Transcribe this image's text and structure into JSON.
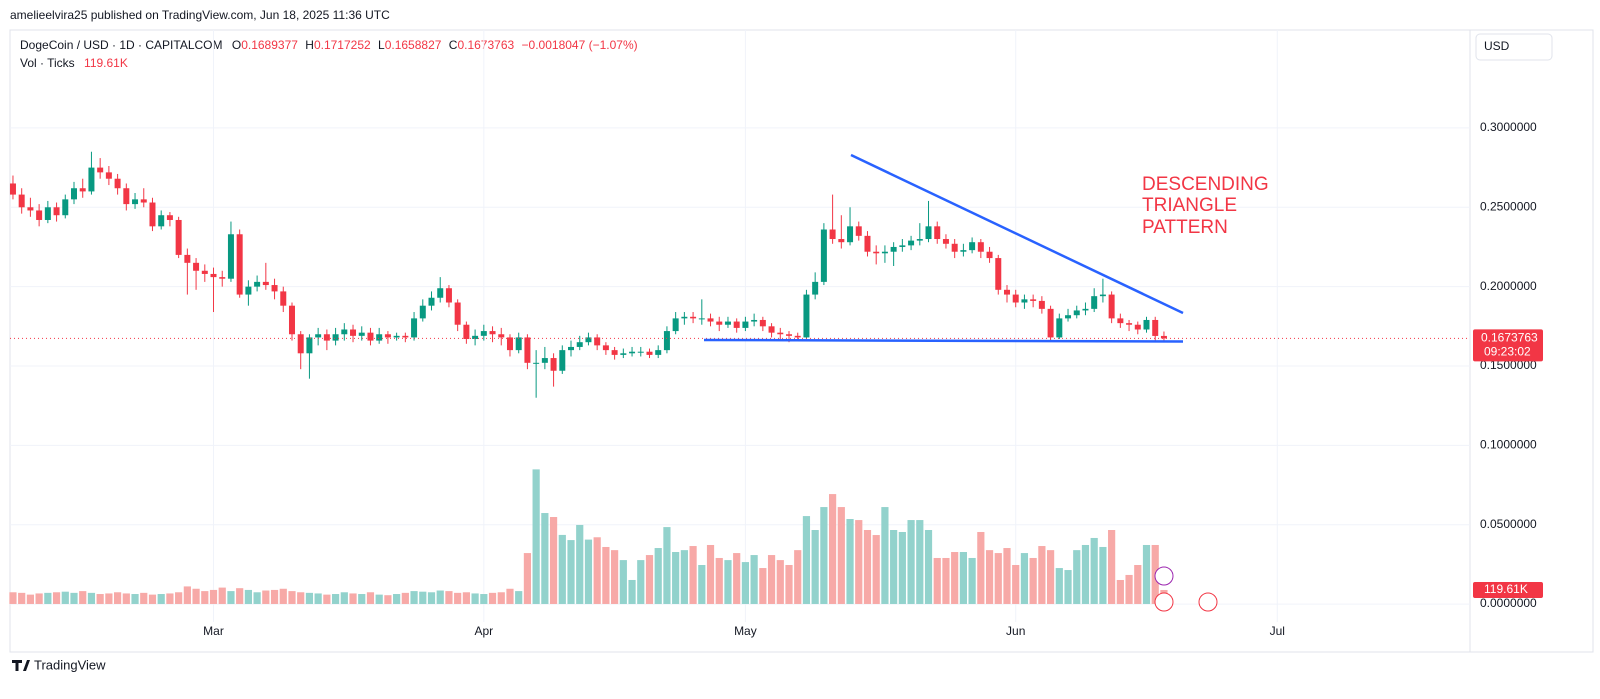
{
  "header": "amelieelvira25 published on TradingView.com, Jun 18, 2025 11:36 UTC",
  "brand": "TradingView",
  "currency": "USD",
  "annotation": [
    "DESCENDING",
    "TRIANGLE",
    "PATTERN"
  ],
  "chart_data": {
    "type": "candlestick",
    "title": "DogeCoin / USD · 1D · CAPITALCOM",
    "ohlc_letters": [
      "O",
      "H",
      "L",
      "C"
    ],
    "change_label": "−0.0018047 (−1.07%)",
    "volume_title": "Vol · Ticks",
    "last_volume_label": "119.61K",
    "countdown": "09:23:02",
    "up_color": "#089981",
    "down_color": "#f23645",
    "volume_up_color": "#92d2cc",
    "volume_down_color": "#f7a9a7",
    "xlim": [
      -0.34,
      167.1
    ],
    "xticks": [
      {
        "value": 23,
        "label": "Mar"
      },
      {
        "value": 54,
        "label": "Apr"
      },
      {
        "value": 84,
        "label": "May"
      },
      {
        "value": 115,
        "label": "Jun"
      },
      {
        "value": 145,
        "label": "Jul"
      }
    ],
    "ylim": [
      -0.0113,
      0.3617
    ],
    "yticks": [
      {
        "value": 0,
        "label": "0.0000000"
      },
      {
        "value": 0.05,
        "label": "0.0500000"
      },
      {
        "value": 0.1,
        "label": "0.1000000"
      },
      {
        "value": 0.15,
        "label": "0.1500000"
      },
      {
        "value": 0.2,
        "label": "0.2000000"
      },
      {
        "value": 0.25,
        "label": "0.2500000"
      },
      {
        "value": 0.3,
        "label": "0.3000000"
      }
    ],
    "volume_ylim": [
      -154,
      4904
    ],
    "grid": true,
    "open": [
      0.265,
      0.258,
      0.25,
      0.248,
      0.242,
      0.25,
      0.245,
      0.255,
      0.262,
      0.26,
      0.275,
      0.272,
      0.268,
      0.262,
      0.252,
      0.255,
      0.253,
      0.238,
      0.245,
      0.242,
      0.22,
      0.215,
      0.21,
      0.208,
      0.206,
      0.205,
      0.233,
      0.195,
      0.2,
      0.203,
      0.201,
      0.197,
      0.188,
      0.17,
      0.158,
      0.168,
      0.17,
      0.166,
      0.17,
      0.173,
      0.169,
      0.171,
      0.166,
      0.17,
      0.168,
      0.169,
      0.168,
      0.18,
      0.188,
      0.193,
      0.199,
      0.19,
      0.176,
      0.167,
      0.169,
      0.172,
      0.17,
      0.168,
      0.16,
      0.168,
      0.152,
      0.152,
      0.155,
      0.147,
      0.16,
      0.162,
      0.165,
      0.168,
      0.163,
      0.16,
      0.157,
      0.158,
      0.159,
      0.159,
      0.157,
      0.16,
      0.172,
      0.18,
      0.181,
      0.18,
      0.18,
      0.178,
      0.176,
      0.178,
      0.174,
      0.178,
      0.179,
      0.175,
      0.171,
      0.17,
      0.169,
      0.168,
      0.195,
      0.203,
      0.236,
      0.23,
      0.228,
      0.238,
      0.232,
      0.222,
      0.221,
      0.222,
      0.225,
      0.226,
      0.229,
      0.23,
      0.238,
      0.23,
      0.227,
      0.222,
      0.223,
      0.228,
      0.222,
      0.218,
      0.198,
      0.195,
      0.19,
      0.192,
      0.191,
      0.186,
      0.168,
      0.18,
      0.182,
      0.185,
      0.186,
      0.194,
      0.195,
      0.18,
      0.177,
      0.176,
      0.173,
      0.179,
      0.1689377
    ],
    "high": [
      0.27,
      0.262,
      0.256,
      0.252,
      0.254,
      0.253,
      0.258,
      0.266,
      0.268,
      0.285,
      0.281,
      0.276,
      0.271,
      0.265,
      0.259,
      0.262,
      0.256,
      0.248,
      0.247,
      0.244,
      0.224,
      0.218,
      0.214,
      0.212,
      0.21,
      0.241,
      0.236,
      0.204,
      0.207,
      0.215,
      0.205,
      0.2,
      0.19,
      0.172,
      0.17,
      0.174,
      0.173,
      0.174,
      0.177,
      0.176,
      0.175,
      0.174,
      0.174,
      0.172,
      0.171,
      0.171,
      0.184,
      0.192,
      0.197,
      0.206,
      0.201,
      0.192,
      0.178,
      0.173,
      0.176,
      0.175,
      0.174,
      0.17,
      0.171,
      0.17,
      0.16,
      0.162,
      0.158,
      0.163,
      0.166,
      0.169,
      0.171,
      0.17,
      0.165,
      0.162,
      0.161,
      0.162,
      0.162,
      0.161,
      0.163,
      0.175,
      0.184,
      0.184,
      0.184,
      0.192,
      0.183,
      0.181,
      0.181,
      0.18,
      0.181,
      0.183,
      0.181,
      0.177,
      0.174,
      0.172,
      0.171,
      0.198,
      0.209,
      0.24,
      0.258,
      0.245,
      0.25,
      0.241,
      0.235,
      0.226,
      0.226,
      0.228,
      0.23,
      0.232,
      0.24,
      0.254,
      0.241,
      0.233,
      0.23,
      0.227,
      0.231,
      0.23,
      0.225,
      0.22,
      0.201,
      0.198,
      0.195,
      0.195,
      0.194,
      0.188,
      0.183,
      0.186,
      0.188,
      0.19,
      0.199,
      0.205,
      0.197,
      0.183,
      0.179,
      0.178,
      0.181,
      0.181,
      0.1717252
    ],
    "low": [
      0.255,
      0.246,
      0.244,
      0.238,
      0.24,
      0.241,
      0.243,
      0.252,
      0.256,
      0.258,
      0.268,
      0.264,
      0.258,
      0.248,
      0.249,
      0.25,
      0.235,
      0.236,
      0.238,
      0.218,
      0.195,
      0.198,
      0.203,
      0.184,
      0.2,
      0.203,
      0.193,
      0.188,
      0.197,
      0.198,
      0.192,
      0.184,
      0.166,
      0.148,
      0.142,
      0.163,
      0.16,
      0.163,
      0.166,
      0.165,
      0.166,
      0.163,
      0.164,
      0.164,
      0.166,
      0.165,
      0.166,
      0.178,
      0.185,
      0.19,
      0.187,
      0.172,
      0.164,
      0.163,
      0.166,
      0.165,
      0.163,
      0.156,
      0.158,
      0.148,
      0.13,
      0.148,
      0.137,
      0.145,
      0.156,
      0.16,
      0.163,
      0.16,
      0.157,
      0.154,
      0.155,
      0.156,
      0.156,
      0.155,
      0.155,
      0.158,
      0.17,
      0.176,
      0.177,
      0.176,
      0.175,
      0.172,
      0.174,
      0.171,
      0.172,
      0.175,
      0.172,
      0.168,
      0.167,
      0.165,
      0.166,
      0.167,
      0.192,
      0.201,
      0.227,
      0.224,
      0.226,
      0.229,
      0.219,
      0.214,
      0.215,
      0.213,
      0.222,
      0.223,
      0.226,
      0.228,
      0.227,
      0.224,
      0.218,
      0.219,
      0.221,
      0.218,
      0.215,
      0.195,
      0.19,
      0.187,
      0.186,
      0.187,
      0.183,
      0.166,
      0.167,
      0.178,
      0.18,
      0.182,
      0.184,
      0.19,
      0.177,
      0.174,
      0.172,
      0.17,
      0.171,
      0.166,
      0.1658827
    ],
    "close": [
      0.258,
      0.25,
      0.248,
      0.242,
      0.25,
      0.245,
      0.255,
      0.262,
      0.26,
      0.275,
      0.272,
      0.268,
      0.262,
      0.252,
      0.255,
      0.253,
      0.238,
      0.245,
      0.242,
      0.22,
      0.215,
      0.21,
      0.208,
      0.206,
      0.205,
      0.233,
      0.195,
      0.2,
      0.203,
      0.201,
      0.197,
      0.188,
      0.17,
      0.158,
      0.168,
      0.17,
      0.166,
      0.17,
      0.173,
      0.169,
      0.171,
      0.166,
      0.17,
      0.168,
      0.169,
      0.168,
      0.18,
      0.188,
      0.193,
      0.199,
      0.19,
      0.176,
      0.167,
      0.169,
      0.172,
      0.17,
      0.168,
      0.16,
      0.168,
      0.152,
      0.152,
      0.155,
      0.147,
      0.16,
      0.162,
      0.165,
      0.168,
      0.163,
      0.16,
      0.157,
      0.158,
      0.159,
      0.159,
      0.157,
      0.16,
      0.172,
      0.18,
      0.181,
      0.18,
      0.18,
      0.178,
      0.176,
      0.178,
      0.174,
      0.178,
      0.179,
      0.175,
      0.171,
      0.17,
      0.169,
      0.168,
      0.195,
      0.203,
      0.236,
      0.23,
      0.228,
      0.238,
      0.232,
      0.222,
      0.221,
      0.222,
      0.225,
      0.226,
      0.229,
      0.23,
      0.238,
      0.23,
      0.227,
      0.222,
      0.223,
      0.228,
      0.222,
      0.218,
      0.198,
      0.195,
      0.19,
      0.192,
      0.191,
      0.186,
      0.168,
      0.18,
      0.182,
      0.185,
      0.186,
      0.194,
      0.195,
      0.18,
      0.177,
      0.176,
      0.173,
      0.179,
      0.1689377,
      0.1673763
    ],
    "volume": [
      100,
      95,
      80,
      90,
      95,
      100,
      105,
      95,
      110,
      95,
      85,
      90,
      100,
      90,
      85,
      95,
      80,
      85,
      90,
      100,
      150,
      130,
      110,
      120,
      140,
      110,
      135,
      120,
      100,
      115,
      120,
      130,
      110,
      100,
      95,
      90,
      80,
      85,
      100,
      90,
      85,
      100,
      80,
      75,
      85,
      95,
      110,
      105,
      100,
      115,
      110,
      95,
      100,
      90,
      85,
      95,
      100,
      130,
      110,
      435,
      1150,
      777,
      743,
      590,
      546,
      675,
      550,
      570,
      487,
      460,
      375,
      205,
      375,
      418,
      478,
      657,
      444,
      460,
      495,
      333,
      504,
      393,
      375,
      435,
      358,
      418,
      307,
      418,
      375,
      333,
      460,
      751,
      632,
      828,
      939,
      828,
      726,
      717,
      632,
      589,
      828,
      632,
      615,
      717,
      717,
      632,
      393,
      393,
      444,
      444,
      393,
      615,
      460,
      435,
      478,
      333,
      435,
      393,
      495,
      460,
      307,
      290,
      460,
      504,
      564,
      487,
      632,
      205,
      248,
      333,
      504,
      504,
      119.61
    ]
  }
}
